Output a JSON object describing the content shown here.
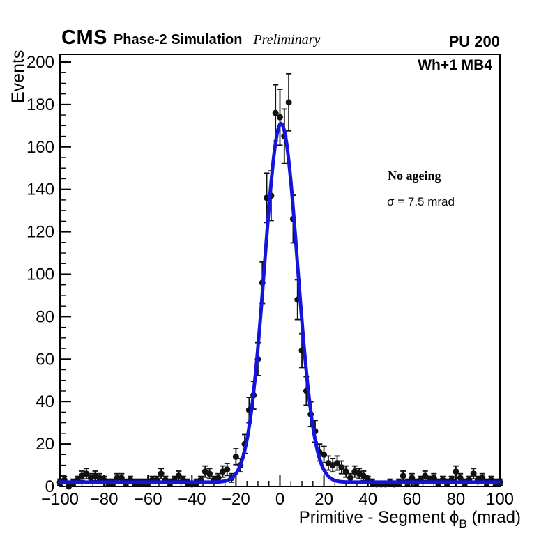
{
  "header": {
    "experiment": "CMS",
    "label": "Phase-2 Simulation",
    "sublabel": "Preliminary",
    "right_label": "PU 200"
  },
  "plot": {
    "corner_label": "Wh+1 MB4",
    "annotation_line1": "No ageing",
    "annotation_line2": "σ = 7.5 mrad"
  },
  "colors": {
    "fit_curve": "#1414dd",
    "marker": "#111111",
    "axis": "#000000",
    "background": "#ffffff"
  },
  "chart_data": {
    "type": "scatter",
    "title": "",
    "xlabel": "Primitive - Segment ϕ_B (mrad)",
    "xlabel_parts": {
      "main": "Primitive - Segment ",
      "symbol": "ϕ",
      "subscript": "B",
      "unit": " (mrad)"
    },
    "ylabel": "Events",
    "xlim": [
      -100,
      100
    ],
    "ylim": [
      0,
      203.6
    ],
    "grid": false,
    "legend_position": "none",
    "bin_width": 2,
    "error_bars": "sqrt(N)",
    "marker_style": "filled-circle",
    "x_axis": {
      "major_ticks": [
        -100,
        -80,
        -60,
        -40,
        -20,
        0,
        20,
        40,
        60,
        80,
        100
      ],
      "labels": [
        "−100",
        "−80",
        "−60",
        "−40",
        "−20",
        "0",
        "20",
        "40",
        "60",
        "80",
        "100"
      ],
      "minor_step": 5
    },
    "y_axis": {
      "major_ticks": [
        0,
        20,
        40,
        60,
        80,
        100,
        120,
        140,
        160,
        180,
        200
      ],
      "labels": [
        "0",
        "20",
        "40",
        "60",
        "80",
        "100",
        "120",
        "140",
        "160",
        "180",
        "200"
      ],
      "minor_step": 5
    },
    "points": {
      "x": [
        -100,
        -98,
        -96,
        -94,
        -92,
        -90,
        -88,
        -86,
        -84,
        -82,
        -80,
        -78,
        -76,
        -74,
        -72,
        -70,
        -68,
        -66,
        -64,
        -62,
        -60,
        -58,
        -56,
        -54,
        -52,
        -50,
        -48,
        -46,
        -44,
        -42,
        -40,
        -38,
        -36,
        -34,
        -32,
        -30,
        -28,
        -26,
        -24,
        -22,
        -20,
        -18,
        -16,
        -14,
        -12,
        -10,
        -8,
        -6,
        -4,
        -2,
        0,
        2,
        4,
        6,
        8,
        10,
        12,
        14,
        16,
        18,
        20,
        22,
        24,
        26,
        28,
        30,
        32,
        34,
        36,
        38,
        40,
        42,
        44,
        46,
        48,
        50,
        52,
        54,
        56,
        58,
        60,
        62,
        64,
        66,
        68,
        70,
        72,
        74,
        76,
        78,
        80,
        82,
        84,
        86,
        88,
        90,
        92,
        94,
        96,
        98,
        100
      ],
      "y": [
        2,
        3,
        0,
        2,
        3,
        5,
        6,
        4,
        5,
        4,
        3,
        2,
        2,
        4,
        4,
        2,
        3,
        2,
        2,
        2,
        2,
        3,
        3,
        6,
        3,
        2,
        3,
        5,
        3,
        2,
        1,
        2,
        3,
        7,
        6,
        3,
        4,
        7,
        8,
        4,
        14,
        10,
        20,
        36,
        43,
        60,
        96,
        136,
        137,
        176,
        174,
        165,
        181,
        126,
        88,
        64,
        45,
        34,
        26,
        16,
        15,
        11,
        10,
        11,
        9,
        7,
        4,
        7,
        6,
        5,
        3,
        2,
        1,
        1,
        1,
        2,
        1,
        2,
        5,
        2,
        4,
        2,
        3,
        5,
        3,
        4,
        2,
        3,
        2,
        3,
        7,
        4,
        2,
        3,
        6,
        3,
        4,
        2,
        3,
        2,
        2
      ]
    },
    "fit": {
      "type": "gaussian",
      "amplitude": 169,
      "mean": 0.5,
      "sigma": 7.5,
      "constant": 2,
      "sigma_label": "σ = 7.5 mrad"
    }
  }
}
